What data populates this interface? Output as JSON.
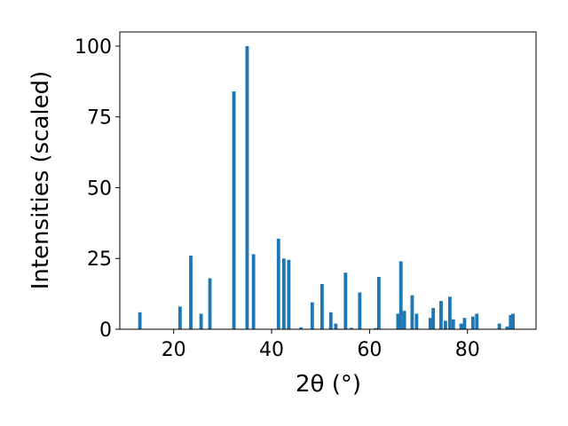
{
  "chart_data": {
    "type": "bar",
    "xlabel": "2θ (°)",
    "ylabel": "Intensities (scaled)",
    "xlim": [
      9,
      94
    ],
    "ylim": [
      0,
      105
    ],
    "x_ticks": [
      20,
      40,
      60,
      80
    ],
    "y_ticks": [
      0,
      25,
      50,
      75,
      100
    ],
    "bar_color": "#1f77b4",
    "bar_width": 0.7,
    "grid": false,
    "legend": "none",
    "x": [
      13.1,
      21.3,
      23.5,
      25.6,
      27.4,
      32.3,
      35.0,
      36.3,
      41.4,
      42.5,
      43.5,
      46.0,
      48.3,
      50.3,
      52.1,
      53.1,
      55.1,
      56.3,
      58.0,
      61.2,
      61.9,
      65.8,
      66.4,
      67.1,
      68.7,
      69.6,
      72.4,
      73.0,
      74.6,
      75.5,
      76.4,
      77.1,
      78.7,
      79.4,
      81.1,
      81.9,
      86.5,
      88.1,
      88.8,
      89.3
    ],
    "values": [
      6,
      8,
      26,
      5.5,
      18,
      84,
      100,
      26.5,
      32,
      25,
      24.5,
      0.7,
      9.5,
      16,
      6,
      2,
      20,
      0.5,
      13,
      0.4,
      18.5,
      5.5,
      24,
      6.5,
      12,
      5.5,
      4,
      7.5,
      10,
      3,
      11.5,
      3.5,
      2,
      4,
      4.5,
      5.5,
      2,
      1,
      5,
      5.5
    ]
  }
}
